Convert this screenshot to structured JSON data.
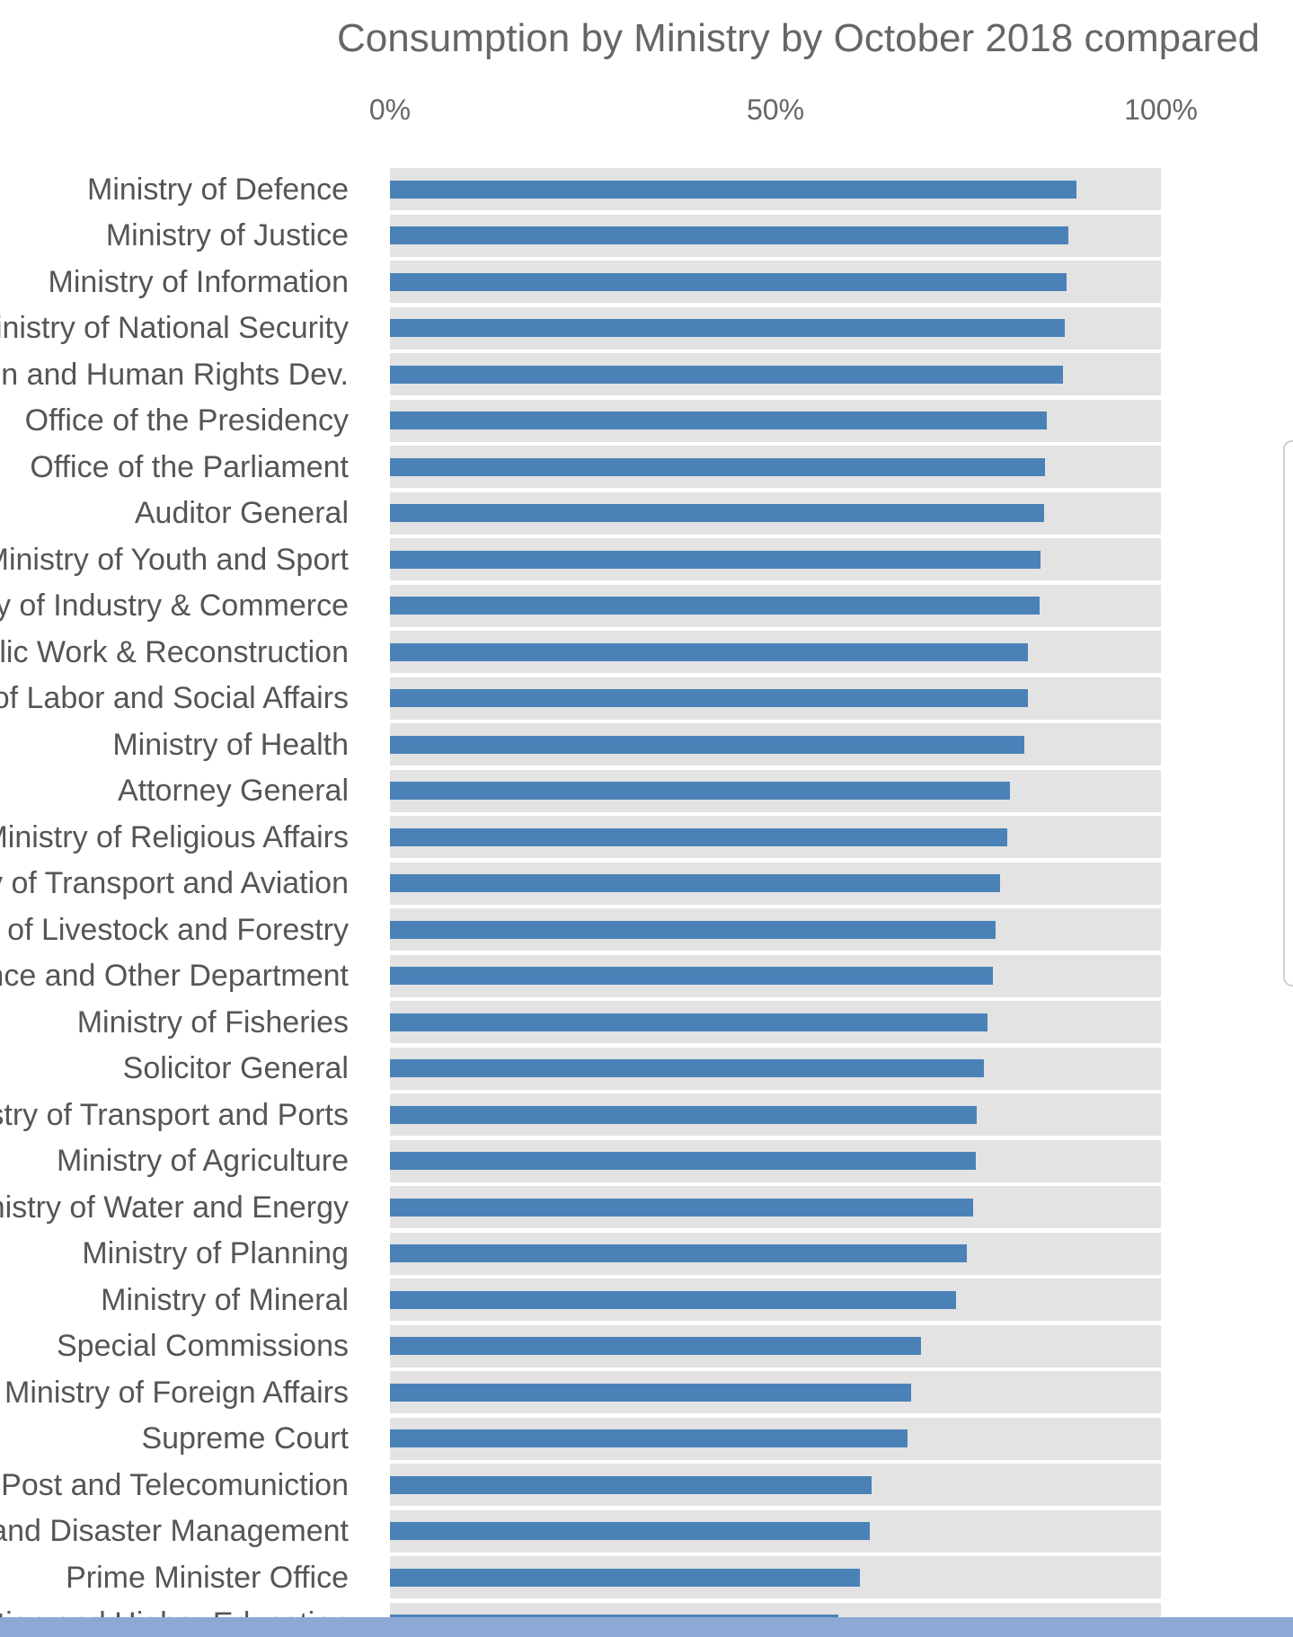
{
  "chart_data": {
    "type": "bar",
    "orientation": "horizontal",
    "title": "Consumption by Ministry by October 2018 compared",
    "xlim": [
      0,
      100
    ],
    "x_ticks": [
      "0%",
      "50%",
      "100%"
    ],
    "grid": false,
    "legend": "none",
    "bar_color": "#4a82b8",
    "track_color": "#e3e3e3",
    "categories": [
      "Ministry of Defence",
      "Ministry of Justice",
      "Ministry of Information",
      "Ministry of National Security",
      "Ministry of Women and Human Rights Dev.",
      "Office of the Presidency",
      "Office of the Parliament",
      "Auditor General",
      "Ministry of Youth and Sport",
      "Ministry of Industry & Commerce",
      "Ministry of Public Work & Reconstruction",
      "Ministry of Labor and Social Affairs",
      "Ministry of Health",
      "Attorney General",
      "Ministry of Religious Affairs",
      "Ministry of Transport and Aviation",
      "Ministry of Livestock and Forestry",
      "Ministry of Finance and Other Department",
      "Ministry of Fisheries",
      "Solicitor General",
      "Ministry of Transport and Ports",
      "Ministry of Agriculture",
      "Ministry of Water and Energy",
      "Ministry of Planning",
      "Ministry of Mineral",
      "Special Commissions",
      "Ministry of Foreign Affairs",
      "Supreme Court",
      "Ministry of Post and Telecomuniction",
      "Ministry of Humanitarian and Disaster Management",
      "Prime Minister Office",
      "Ministry of Education and Higher Education"
    ],
    "values": [
      89,
      88,
      87.8,
      87.5,
      87.3,
      85.2,
      85,
      84.8,
      84.4,
      84.3,
      82.8,
      82.7,
      82.3,
      80.4,
      80.1,
      79.1,
      78.6,
      78.2,
      77.5,
      77,
      76.1,
      76,
      75.6,
      74.8,
      73.4,
      68.9,
      67.6,
      67.1,
      62.5,
      62.2,
      61,
      58.2
    ]
  }
}
